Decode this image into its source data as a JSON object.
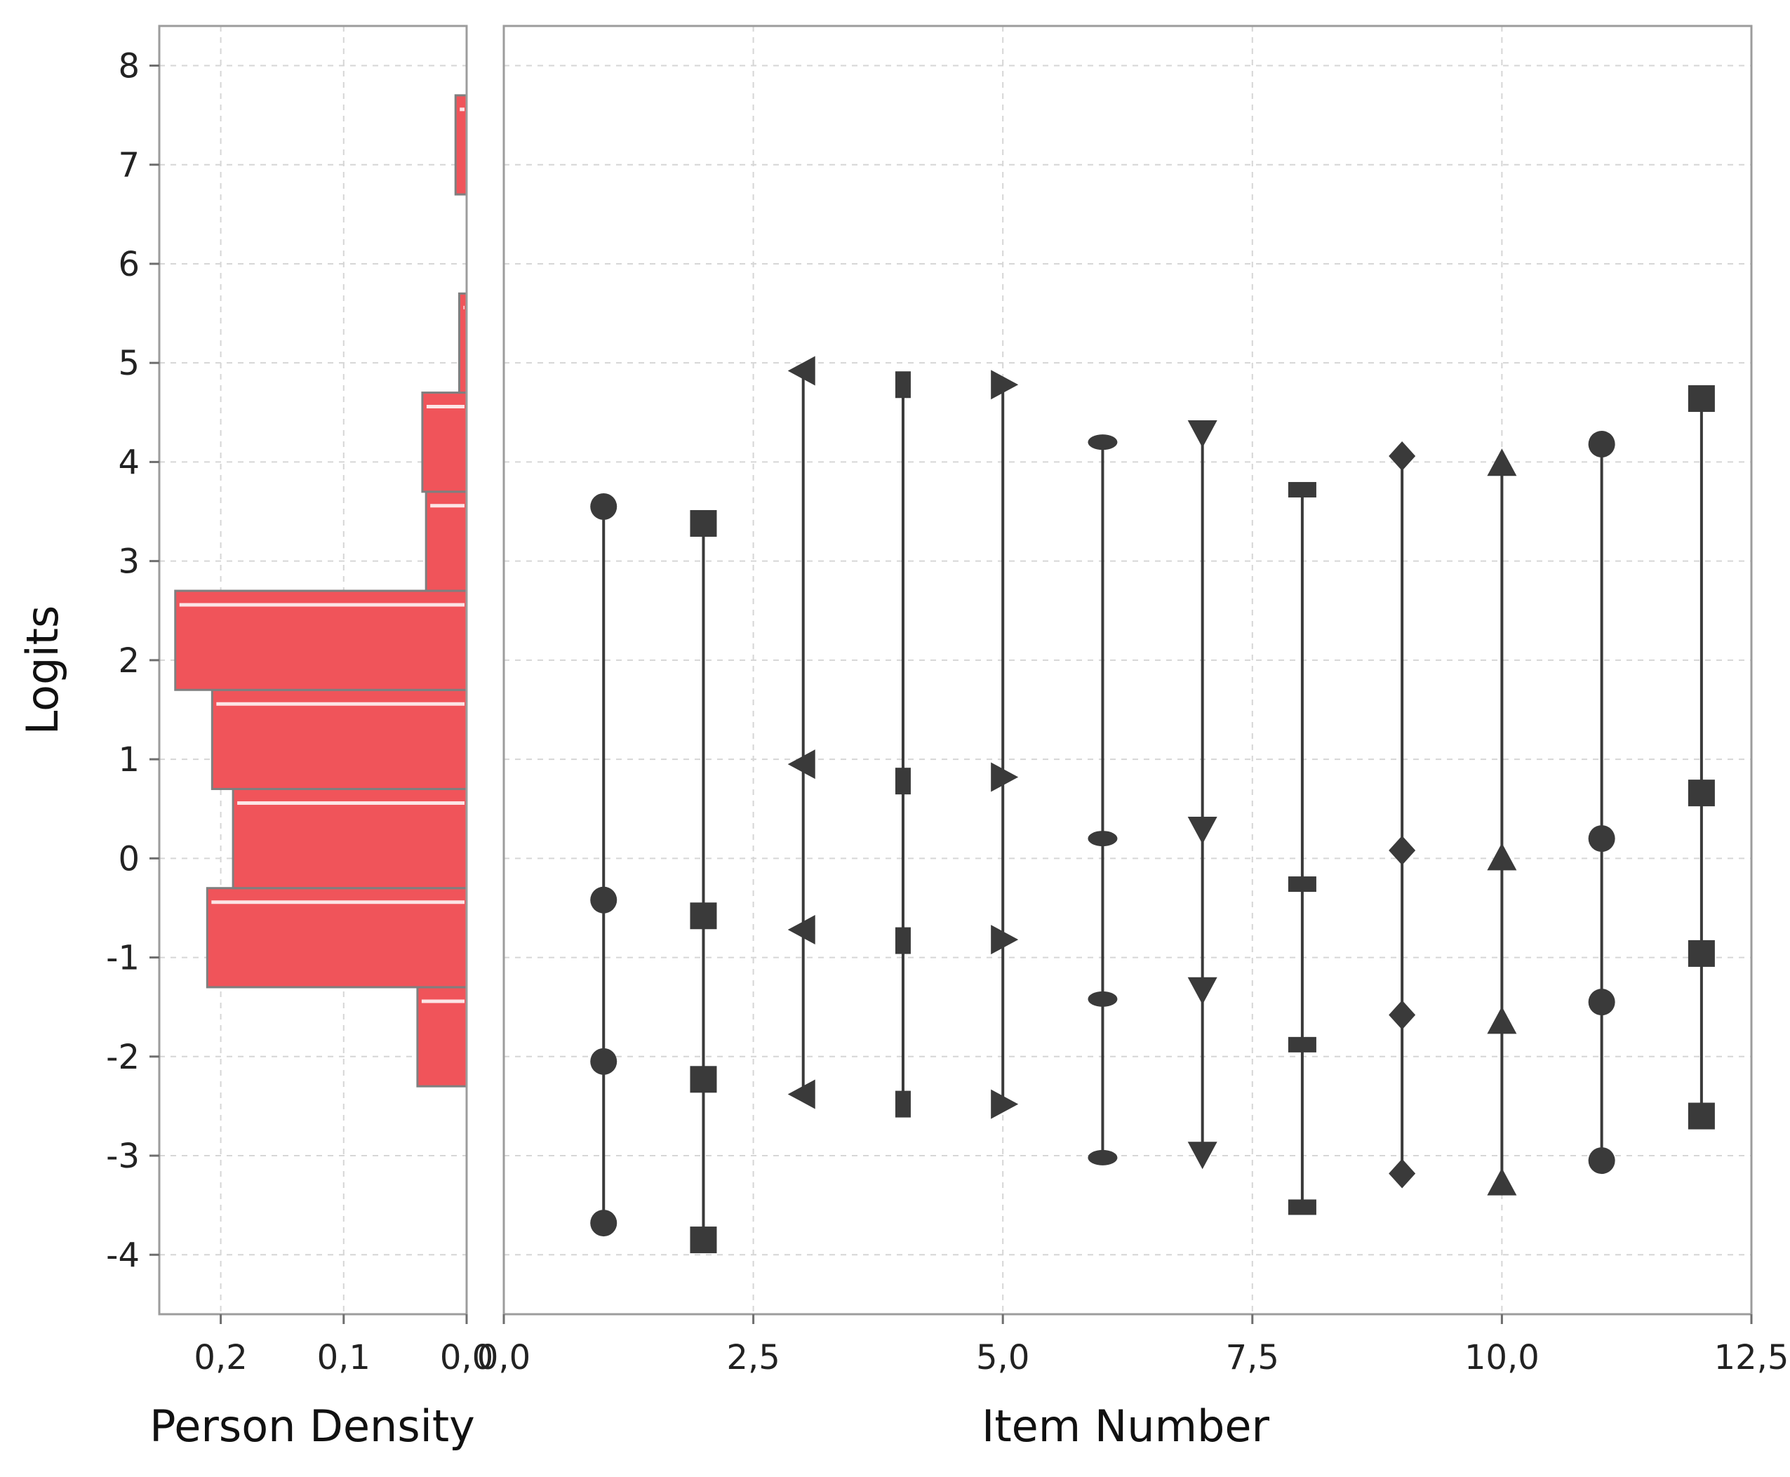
{
  "chart_data": [
    {
      "type": "bar",
      "orientation": "horizontal",
      "xlabel": "Person Density",
      "ylabel": "Logits",
      "xlim": [
        0.25,
        0.0
      ],
      "ylim": [
        -4.6,
        8.4
      ],
      "x_ticks": [
        0.2,
        0.1,
        0.0
      ],
      "x_tick_labels": [
        "0,2",
        "0,1",
        "0,0"
      ],
      "y_ticks": [
        -4,
        -3,
        -2,
        -1,
        0,
        1,
        2,
        3,
        4,
        5,
        6,
        7,
        8
      ],
      "y_tick_labels": [
        "-4",
        "-3",
        "-2",
        "-1",
        "0",
        "1",
        "2",
        "3",
        "4",
        "5",
        "6",
        "7",
        "8"
      ],
      "bar_color": "#f0545a",
      "bins": [
        {
          "from": -2.3,
          "to": -1.3,
          "value": 0.04
        },
        {
          "from": -1.3,
          "to": -0.3,
          "value": 0.211
        },
        {
          "from": -0.3,
          "to": 0.7,
          "value": 0.19
        },
        {
          "from": 0.7,
          "to": 1.7,
          "value": 0.207
        },
        {
          "from": 1.7,
          "to": 2.7,
          "value": 0.237
        },
        {
          "from": 2.7,
          "to": 3.7,
          "value": 0.033
        },
        {
          "from": 3.7,
          "to": 4.7,
          "value": 0.036
        },
        {
          "from": 4.7,
          "to": 5.7,
          "value": 0.006
        },
        {
          "from": 6.7,
          "to": 7.7,
          "value": 0.009
        }
      ],
      "grid": true
    },
    {
      "type": "scatter",
      "xlabel": "Item Number",
      "ylabel": "",
      "xlim": [
        0.0,
        12.5
      ],
      "ylim": [
        -4.6,
        8.4
      ],
      "x_ticks": [
        0.0,
        2.5,
        5.0,
        7.5,
        10.0,
        12.5
      ],
      "x_tick_labels": [
        "0,0",
        "2,5",
        "5,0",
        "7,5",
        "10,0",
        "12,5"
      ],
      "grid": true,
      "marker_color": "#3a3a3a",
      "items": [
        {
          "x": 1,
          "marker": "circle",
          "thresholds": [
            -3.68,
            -2.05,
            -0.42,
            3.55
          ]
        },
        {
          "x": 2,
          "marker": "square",
          "thresholds": [
            -3.85,
            -2.23,
            -0.58,
            3.38
          ]
        },
        {
          "x": 3,
          "marker": "triangle-left",
          "thresholds": [
            -2.38,
            -0.72,
            0.95,
            4.92
          ]
        },
        {
          "x": 4,
          "marker": "rect",
          "thresholds": [
            -2.48,
            -0.83,
            0.78,
            4.78
          ]
        },
        {
          "x": 5,
          "marker": "triangle-right",
          "thresholds": [
            -2.48,
            -0.82,
            0.82,
            4.78
          ]
        },
        {
          "x": 6,
          "marker": "ellipse",
          "thresholds": [
            -3.02,
            -1.42,
            0.2,
            4.2
          ]
        },
        {
          "x": 7,
          "marker": "triangle-down",
          "thresholds": [
            -2.98,
            -1.32,
            0.3,
            4.3
          ]
        },
        {
          "x": 8,
          "marker": "dash",
          "thresholds": [
            -3.52,
            -1.88,
            -0.26,
            3.72
          ]
        },
        {
          "x": 9,
          "marker": "diamond",
          "thresholds": [
            -3.18,
            -1.58,
            0.08,
            4.06
          ]
        },
        {
          "x": 10,
          "marker": "triangle-up",
          "thresholds": [
            -3.28,
            -1.65,
            0.0,
            3.98
          ]
        },
        {
          "x": 11,
          "marker": "circle",
          "thresholds": [
            -3.05,
            -1.45,
            0.2,
            4.18
          ]
        },
        {
          "x": 12,
          "marker": "square",
          "thresholds": [
            -2.6,
            -0.96,
            0.66,
            4.64
          ]
        }
      ]
    }
  ]
}
